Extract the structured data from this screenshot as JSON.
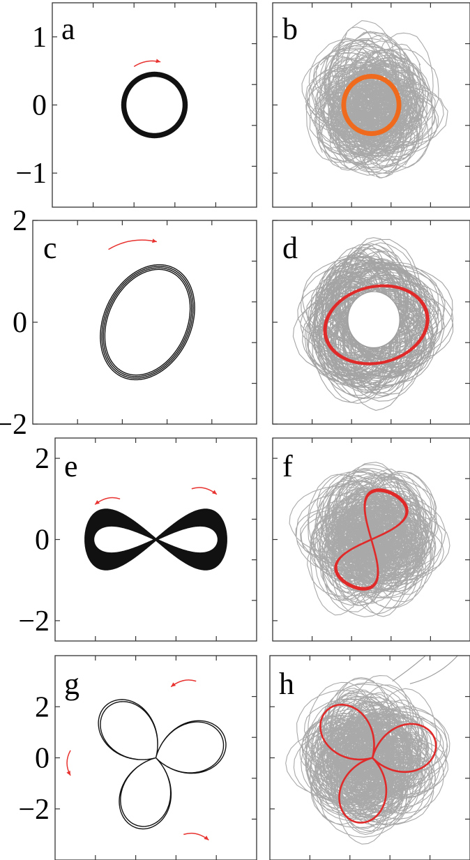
{
  "chart_data": [
    {
      "type": "line",
      "panel": "a",
      "ylim": [
        -1.5,
        1.5
      ],
      "xlim": [
        -1.5,
        1.5
      ],
      "ytick_labels": [
        "1",
        "0",
        "−1"
      ],
      "ytick_values": [
        1,
        0,
        -1
      ],
      "curve": {
        "shape": "circle",
        "center": [
          0,
          0
        ],
        "radius": 0.45,
        "loops": 6,
        "color": "#111111",
        "thick": true
      },
      "arrows": [
        {
          "at_deg": 100,
          "span_deg": 36,
          "dir": "cw",
          "color": "#e8322f"
        }
      ]
    },
    {
      "type": "line",
      "panel": "b",
      "ylim": [
        -1.5,
        1.5
      ],
      "xlim": [
        -1.5,
        1.5
      ],
      "background": {
        "color": "#9a9a9a",
        "radius": 0.95,
        "loops": 220,
        "seed": 11
      },
      "curve": {
        "shape": "circle",
        "center": [
          0,
          0
        ],
        "radius": 0.42,
        "loops": 4,
        "color": "#f06a1e"
      }
    },
    {
      "type": "line",
      "panel": "c",
      "ylim": [
        -2,
        2
      ],
      "xlim": [
        -2,
        2
      ],
      "ytick_labels": [
        "2",
        "0",
        "−2"
      ],
      "ytick_values": [
        2,
        0,
        -2
      ],
      "curve": {
        "shape": "ellipse",
        "center": [
          0.05,
          0
        ],
        "rx": 0.75,
        "ry": 1.12,
        "tilt_deg": 20,
        "loops": 4,
        "color": "#111111"
      },
      "arrows": [
        {
          "at_deg": 100,
          "span_deg": 32,
          "dir": "cw",
          "color": "#e8322f"
        }
      ]
    },
    {
      "type": "line",
      "panel": "d",
      "ylim": [
        -2,
        2
      ],
      "xlim": [
        -2,
        2
      ],
      "background": {
        "color": "#9a9a9a",
        "shape": "ring",
        "radius_in": 0.5,
        "radius_out": 1.15,
        "loops": 160,
        "seed": 21
      },
      "curve": {
        "shape": "ellipse",
        "center": [
          0.1,
          -0.05
        ],
        "rx": 1.05,
        "ry": 0.75,
        "tilt_deg": -12,
        "loops": 2,
        "color": "#e02a2a",
        "open": true
      }
    },
    {
      "type": "line",
      "panel": "e",
      "ylim": [
        -2.5,
        2.5
      ],
      "xlim": [
        -2.5,
        2.5
      ],
      "ytick_labels": [
        "2",
        "0",
        "−2"
      ],
      "ytick_values": [
        2,
        0,
        -2
      ],
      "curve": {
        "shape": "figure-eight",
        "center": [
          0,
          0
        ],
        "ax": 1.65,
        "ay": 0.8,
        "loops": 14,
        "color": "#111111",
        "thick": true
      },
      "arrows": [
        {
          "x": 1.2,
          "y": 1.25,
          "dir": "right",
          "color": "#e8322f"
        },
        {
          "x": -1.2,
          "y": 1.0,
          "dir": "left",
          "color": "#e8322f"
        }
      ]
    },
    {
      "type": "line",
      "panel": "f",
      "ylim": [
        -2.5,
        2.5
      ],
      "xlim": [
        -2.5,
        2.5
      ],
      "background": {
        "color": "#9a9a9a",
        "radius": 1.6,
        "loops": 260,
        "seed": 31
      },
      "curve": {
        "shape": "figure-eight-vertical",
        "center": [
          0,
          0
        ],
        "ax": 0.55,
        "ay": 1.25,
        "tilt_deg": 25,
        "loops": 2,
        "color": "#e02a2a"
      }
    },
    {
      "type": "line",
      "panel": "g",
      "ylim": [
        -4,
        4
      ],
      "xlim": [
        -4,
        4
      ],
      "ytick_labels": [
        "2",
        "0",
        "−2"
      ],
      "ytick_values": [
        2,
        0,
        -2
      ],
      "curve": {
        "shape": "trefoil",
        "center": [
          0,
          0
        ],
        "size": 2.8,
        "rot_deg": 15,
        "loops": 2,
        "color": "#111111"
      },
      "arrows": [
        {
          "x": 1.1,
          "y": 3.0,
          "dir": "left",
          "color": "#e8322f"
        },
        {
          "x": -3.5,
          "y": -0.2,
          "dir": "down",
          "color": "#e8322f"
        },
        {
          "x": 1.6,
          "y": -3.0,
          "dir": "right",
          "color": "#e8322f"
        }
      ]
    },
    {
      "type": "line",
      "panel": "h",
      "ylim": [
        -4,
        4
      ],
      "xlim": [
        -4,
        4
      ],
      "background": {
        "color": "#9a9a9a",
        "radius": 2.6,
        "loops": 260,
        "seed": 41
      },
      "curve": {
        "shape": "trefoil",
        "center": [
          0.1,
          0
        ],
        "size": 2.6,
        "rot_deg": 15,
        "loops": 1,
        "color": "#e02a2a"
      }
    }
  ]
}
